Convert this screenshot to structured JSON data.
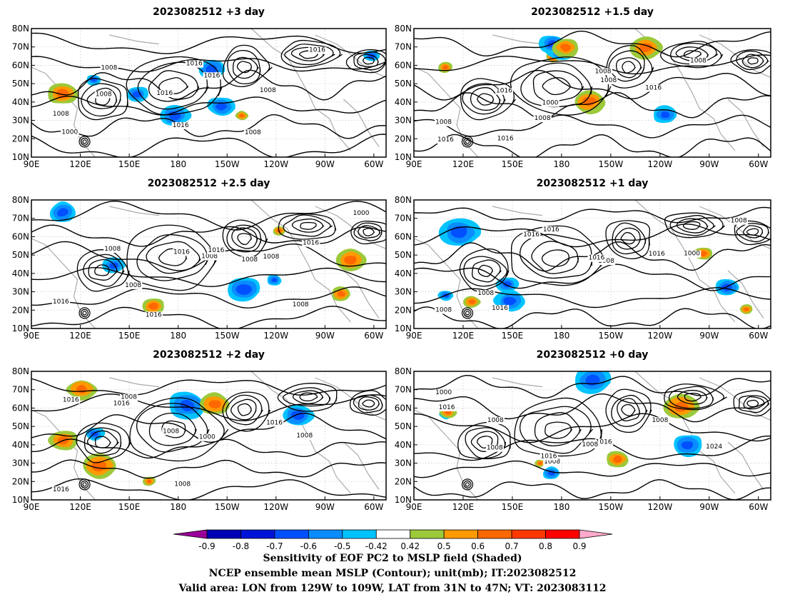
{
  "chart_data": {
    "type": "heatmap",
    "panels": [
      {
        "title": "2023082512 +3 day",
        "contour_labels": [
          "1008",
          "1008",
          "1016",
          "1016",
          "1008",
          "1016",
          "1000",
          "1008",
          "1016",
          "1016",
          "1008"
        ]
      },
      {
        "title": "2023082512 +1.5 day",
        "contour_labels": [
          "1008",
          "1016",
          "1000",
          "1008",
          "1016",
          "1008",
          "1016",
          "1016",
          "1008",
          "1008"
        ]
      },
      {
        "title": "2023082512 +2.5 day",
        "contour_labels": [
          "1016",
          "1008",
          "1016",
          "1008",
          "1008",
          "1016",
          "1000",
          "1008",
          "1016",
          "1016",
          "1008",
          "1008"
        ]
      },
      {
        "title": "2023082512 +1 day",
        "contour_labels": [
          "1008",
          "1016",
          "1016",
          "1008",
          "1016",
          "1000",
          "1008",
          "1008",
          "1016",
          "1016"
        ]
      },
      {
        "title": "2023082512 +2 day",
        "contour_labels": [
          "1016",
          "1008",
          "1008",
          "1000",
          "1016",
          "1008",
          "1016",
          "1016",
          "1008"
        ]
      },
      {
        "title": "2023082512 +0 day",
        "contour_labels": [
          "1000",
          "1008",
          "1008",
          "1016",
          "1008",
          "1024",
          "1016",
          "1008",
          "1016",
          "1008"
        ]
      }
    ],
    "x_ticks": [
      "90E",
      "120E",
      "150E",
      "180",
      "150W",
      "120W",
      "90W",
      "60W"
    ],
    "y_ticks": [
      "10N",
      "20N",
      "30N",
      "40N",
      "50N",
      "60N",
      "70N",
      "80N"
    ],
    "colorbar": {
      "levels": [
        "-0.9",
        "-0.8",
        "-0.7",
        "-0.6",
        "-0.5",
        "-0.42",
        "0.42",
        "0.5",
        "0.6",
        "0.7",
        "0.8",
        "0.9"
      ],
      "colors": [
        "#9a009a",
        "#0000b4",
        "#0014d8",
        "#0050ff",
        "#0a8cff",
        "#00c3ff",
        "#ffffff",
        "#9cc93a",
        "#ff9a00",
        "#ff6800",
        "#ff3800",
        "#ff0000",
        "#ffaacc"
      ]
    },
    "caption_lines": [
      "Sensitivity of EOF PC2 to MSLP field (Shaded)",
      "NCEP ensemble mean MSLP (Contour); unit(mb); IT:2023082512",
      "Valid area: LON from 129W to 109W, LAT from 31N to 47N; VT: 2023083112"
    ]
  }
}
